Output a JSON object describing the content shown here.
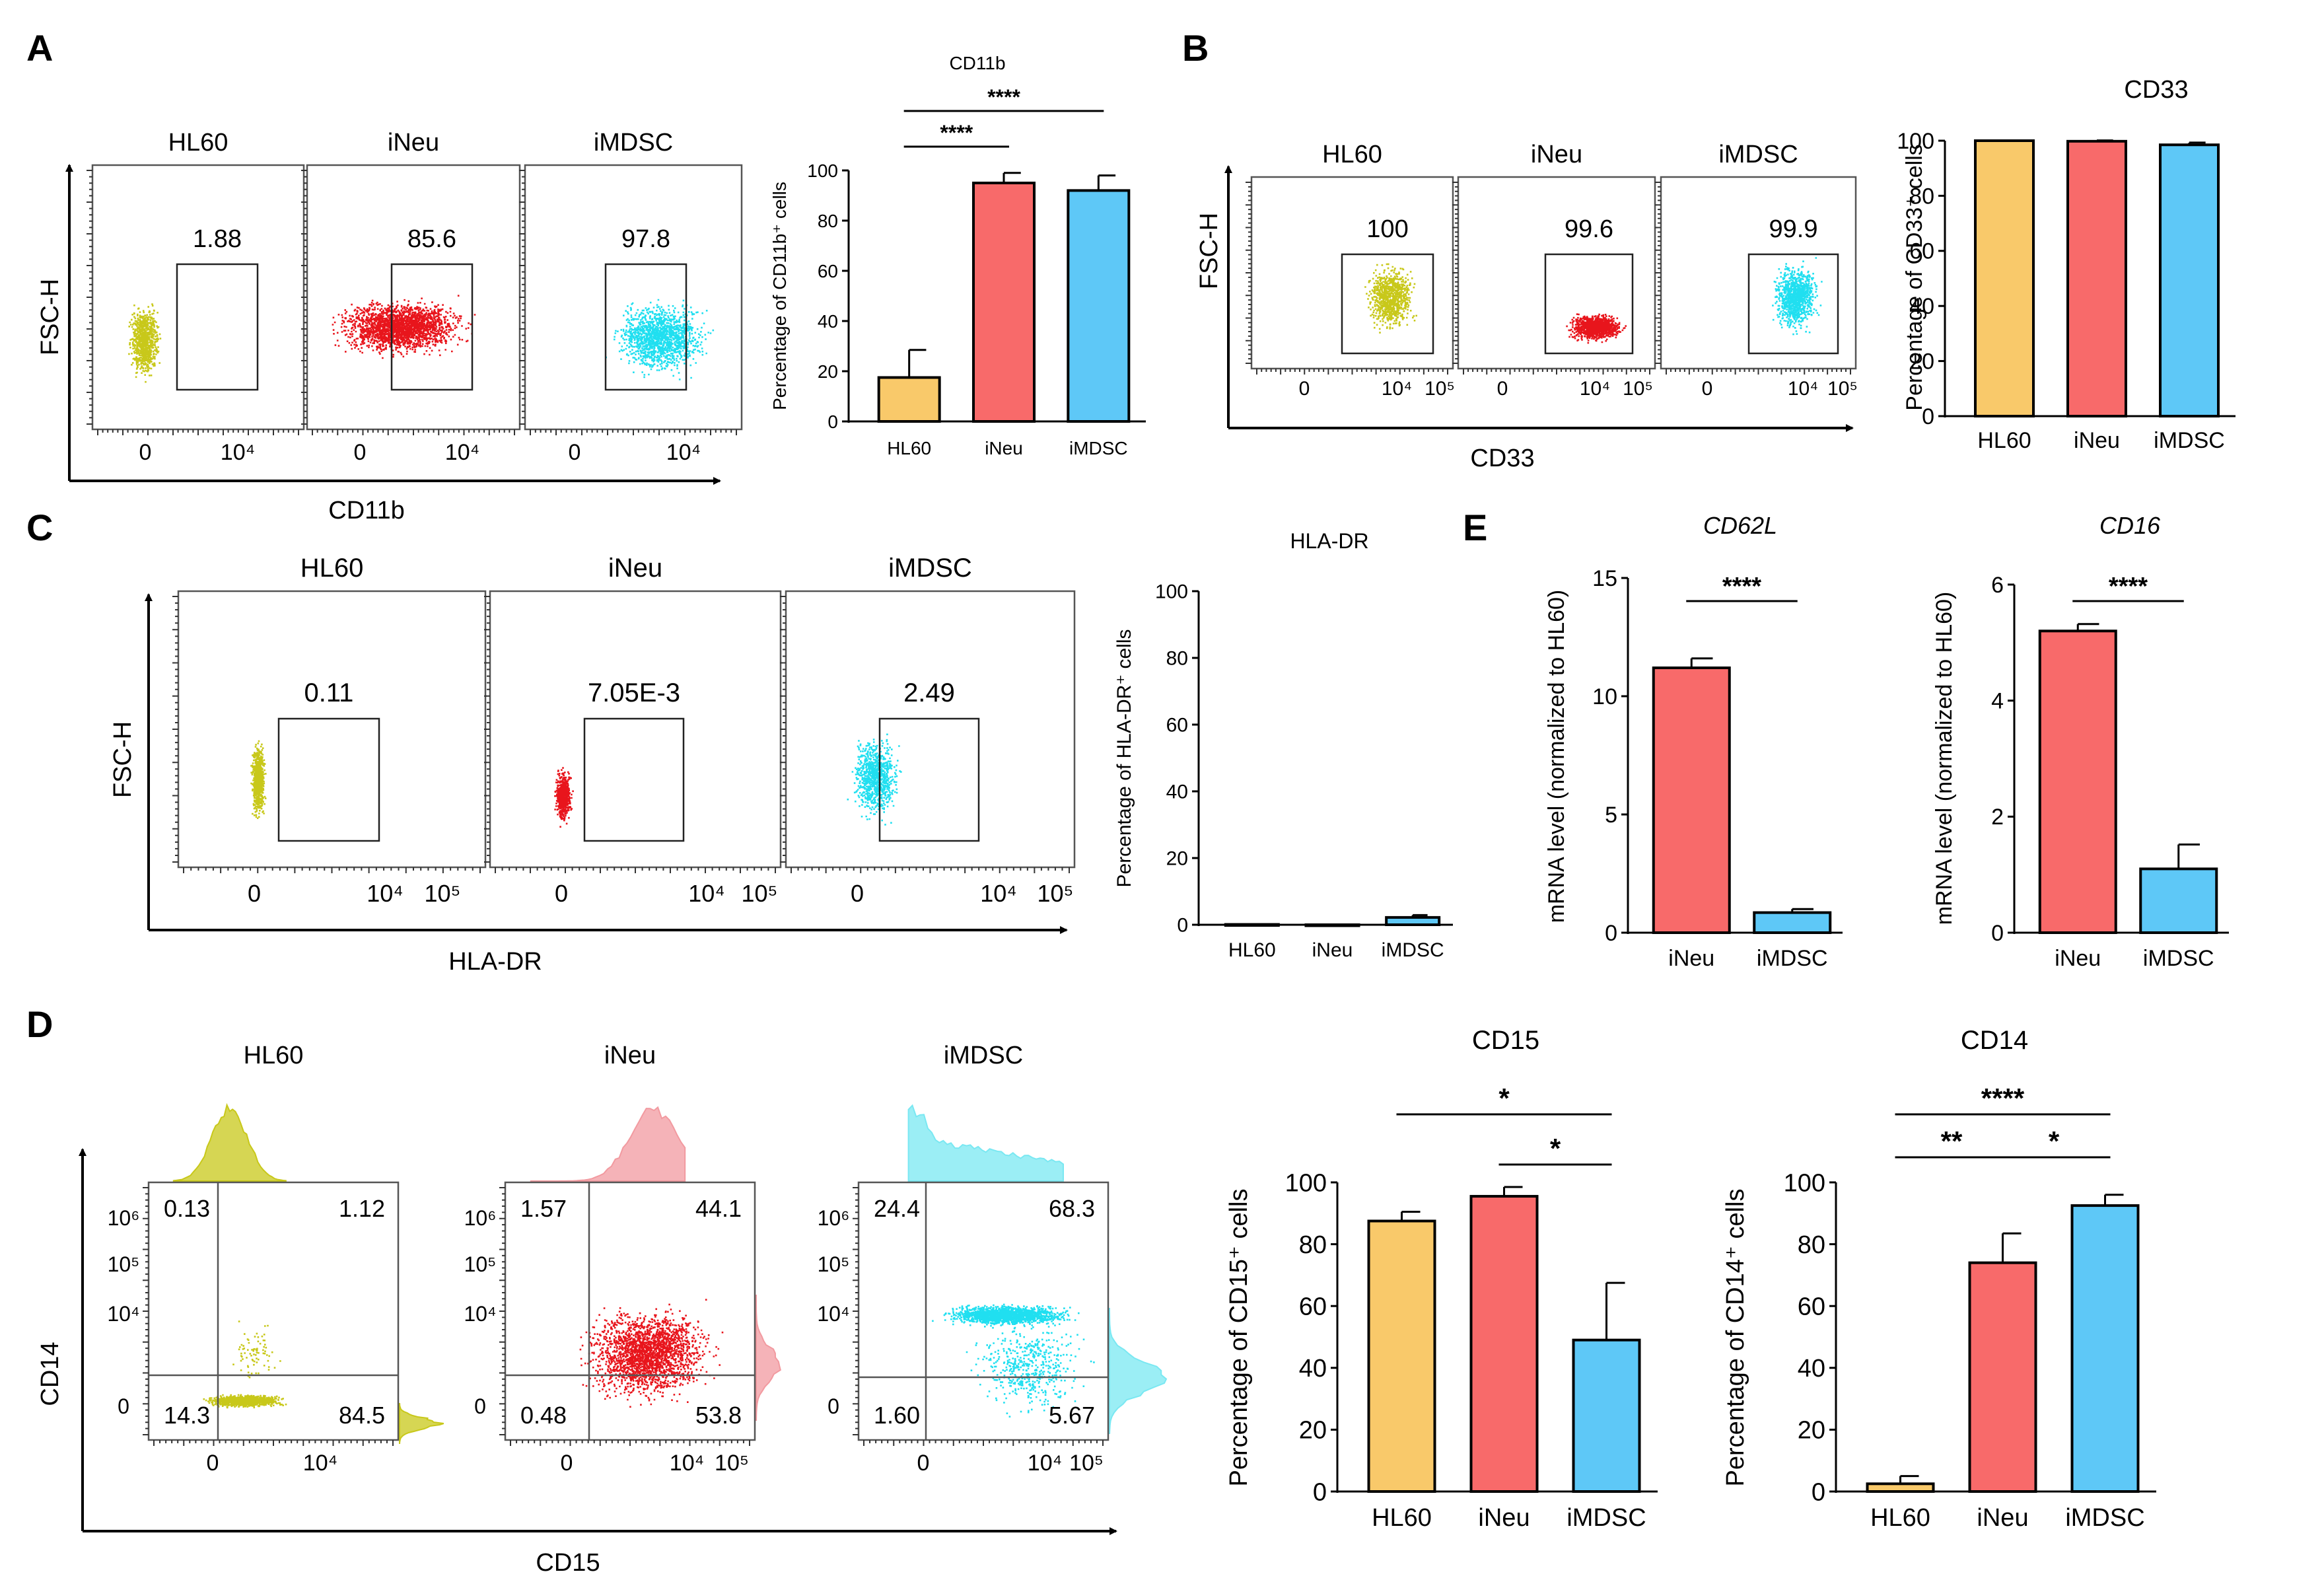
{
  "colors": {
    "hl60": "#f9c96a",
    "ineu": "#f86a6a",
    "imdsc": "#5ec8f7",
    "hl60_dot": "#c8c81a",
    "ineu_dot": "#e8151c",
    "imdsc_dot": "#20dff0",
    "ineu_hist": "#f29aa0",
    "imdsc_hist": "#7ae8f2"
  },
  "panels": {
    "A": {
      "label": "A",
      "xlabel": "CD11b",
      "ylabel": "FSC-H",
      "plots": [
        {
          "title": "HL60",
          "gate": "1.88",
          "ticks": [
            "0",
            "10⁴"
          ]
        },
        {
          "title": "iNeu",
          "gate": "85.6",
          "ticks": [
            "0",
            "10⁴"
          ]
        },
        {
          "title": "iMDSC",
          "gate": "97.8",
          "ticks": [
            "0",
            "10⁴"
          ]
        }
      ]
    },
    "B": {
      "label": "B",
      "xlabel": "CD33",
      "ylabel": "FSC-H",
      "plots": [
        {
          "title": "HL60",
          "gate": "100",
          "ticks": [
            "0",
            "10⁴",
            "10⁵"
          ]
        },
        {
          "title": "iNeu",
          "gate": "99.6",
          "ticks": [
            "0",
            "10⁴",
            "10⁵"
          ]
        },
        {
          "title": "iMDSC",
          "gate": "99.9",
          "ticks": [
            "0",
            "10⁴",
            "10⁵"
          ]
        }
      ]
    },
    "C": {
      "label": "C",
      "xlabel": "HLA-DR",
      "ylabel": "FSC-H",
      "plots": [
        {
          "title": "HL60",
          "gate": "0.11",
          "ticks": [
            "0",
            "10⁴",
            "10⁵"
          ]
        },
        {
          "title": "iNeu",
          "gate": "7.05E-3",
          "ticks": [
            "0",
            "10⁴",
            "10⁵"
          ]
        },
        {
          "title": "iMDSC",
          "gate": "2.49",
          "ticks": [
            "0",
            "10⁴",
            "10⁵"
          ]
        }
      ]
    },
    "D": {
      "label": "D",
      "xlabel": "CD15",
      "ylabel": "CD14",
      "yticks": [
        "10⁶",
        "10⁵",
        "10⁴",
        "0"
      ],
      "plots": [
        {
          "title": "HL60",
          "q": [
            "0.13",
            "1.12",
            "14.3",
            "84.5"
          ],
          "ticks": [
            "0",
            "10⁴"
          ]
        },
        {
          "title": "iNeu",
          "q": [
            "1.57",
            "44.1",
            "0.48",
            "53.8"
          ],
          "ticks": [
            "0",
            "10⁴",
            "10⁵"
          ]
        },
        {
          "title": "iMDSC",
          "q": [
            "24.4",
            "68.3",
            "1.60",
            "5.67"
          ],
          "ticks": [
            "0",
            "10⁴",
            "10⁵"
          ]
        }
      ]
    },
    "E": {
      "label": "E"
    }
  },
  "chart_data": [
    {
      "id": "cd11b",
      "type": "bar",
      "title": "CD11b",
      "categories": [
        "HL60",
        "iNeu",
        "iMDSC"
      ],
      "values": [
        17.5,
        95,
        92
      ],
      "errors": [
        11,
        4,
        6
      ],
      "ylabel": "Percentage of  CD11b⁺ cells",
      "ylim": [
        0,
        100
      ],
      "yticks": [
        0,
        20,
        40,
        60,
        80,
        100
      ],
      "significance": [
        {
          "from": 0,
          "to": 1,
          "label": "****"
        },
        {
          "from": 0,
          "to": 2,
          "label": "****"
        }
      ]
    },
    {
      "id": "cd33",
      "type": "bar",
      "title": "CD33",
      "categories": [
        "HL60",
        "iNeu",
        "iMDSC"
      ],
      "values": [
        100,
        99.8,
        98.5
      ],
      "errors": [
        0,
        0.3,
        0.8
      ],
      "ylabel": "Percentage of CD33⁺ cells",
      "ylim": [
        0,
        100
      ],
      "yticks": [
        0,
        20,
        40,
        60,
        80,
        100
      ],
      "significance": []
    },
    {
      "id": "hladr",
      "type": "bar",
      "title": "HLA-DR",
      "categories": [
        "HL60",
        "iNeu",
        "iMDSC"
      ],
      "values": [
        0.1,
        0.01,
        2.2
      ],
      "errors": [
        0,
        0,
        0.7
      ],
      "ylabel": "Percentage of  HLA-DR⁺ cells",
      "ylim": [
        0,
        100
      ],
      "yticks": [
        0,
        20,
        40,
        60,
        80,
        100
      ],
      "significance": []
    },
    {
      "id": "cd62l",
      "type": "bar",
      "title": "CD62L",
      "categories": [
        "iNeu",
        "iMDSC"
      ],
      "values": [
        11.2,
        0.85
      ],
      "errors": [
        0.4,
        0.15
      ],
      "ylabel": "mRNA level (normalized to HL60)",
      "ylim": [
        0,
        15
      ],
      "yticks": [
        0,
        5,
        10,
        15
      ],
      "significance": [
        {
          "from": 0,
          "to": 1,
          "label": "****"
        }
      ]
    },
    {
      "id": "cd16",
      "type": "bar",
      "title": "CD16",
      "categories": [
        "iNeu",
        "iMDSC"
      ],
      "values": [
        5.2,
        1.1
      ],
      "errors": [
        0.12,
        0.42
      ],
      "ylabel": "mRNA level (normalized to HL60)",
      "ylim": [
        0,
        6
      ],
      "yticks": [
        0,
        2,
        4,
        6
      ],
      "significance": [
        {
          "from": 0,
          "to": 1,
          "label": "****"
        }
      ]
    },
    {
      "id": "cd15",
      "type": "bar",
      "title": "CD15",
      "categories": [
        "HL60",
        "iNeu",
        "iMDSC"
      ],
      "values": [
        87.5,
        95.5,
        49
      ],
      "errors": [
        3,
        3,
        18.5
      ],
      "ylabel": "Percentage of  CD15⁺ cells",
      "ylim": [
        0,
        100
      ],
      "yticks": [
        0,
        20,
        40,
        60,
        80,
        100
      ],
      "significance": [
        {
          "from": 1,
          "to": 2,
          "label": "*"
        },
        {
          "from": 0,
          "to": 2,
          "label": "*"
        }
      ]
    },
    {
      "id": "cd14",
      "type": "bar",
      "title": "CD14",
      "categories": [
        "HL60",
        "iNeu",
        "iMDSC"
      ],
      "values": [
        2.5,
        74,
        92.5
      ],
      "errors": [
        2.5,
        9.5,
        3.5
      ],
      "ylabel": "Percentage of  CD14⁺ cells",
      "ylim": [
        0,
        100
      ],
      "yticks": [
        0,
        20,
        40,
        60,
        80,
        100
      ],
      "significance": [
        {
          "from": 0,
          "to": 1,
          "label": "**"
        },
        {
          "from": 1,
          "to": 2,
          "label": "*"
        },
        {
          "from": 0,
          "to": 2,
          "label": "****"
        }
      ]
    }
  ]
}
